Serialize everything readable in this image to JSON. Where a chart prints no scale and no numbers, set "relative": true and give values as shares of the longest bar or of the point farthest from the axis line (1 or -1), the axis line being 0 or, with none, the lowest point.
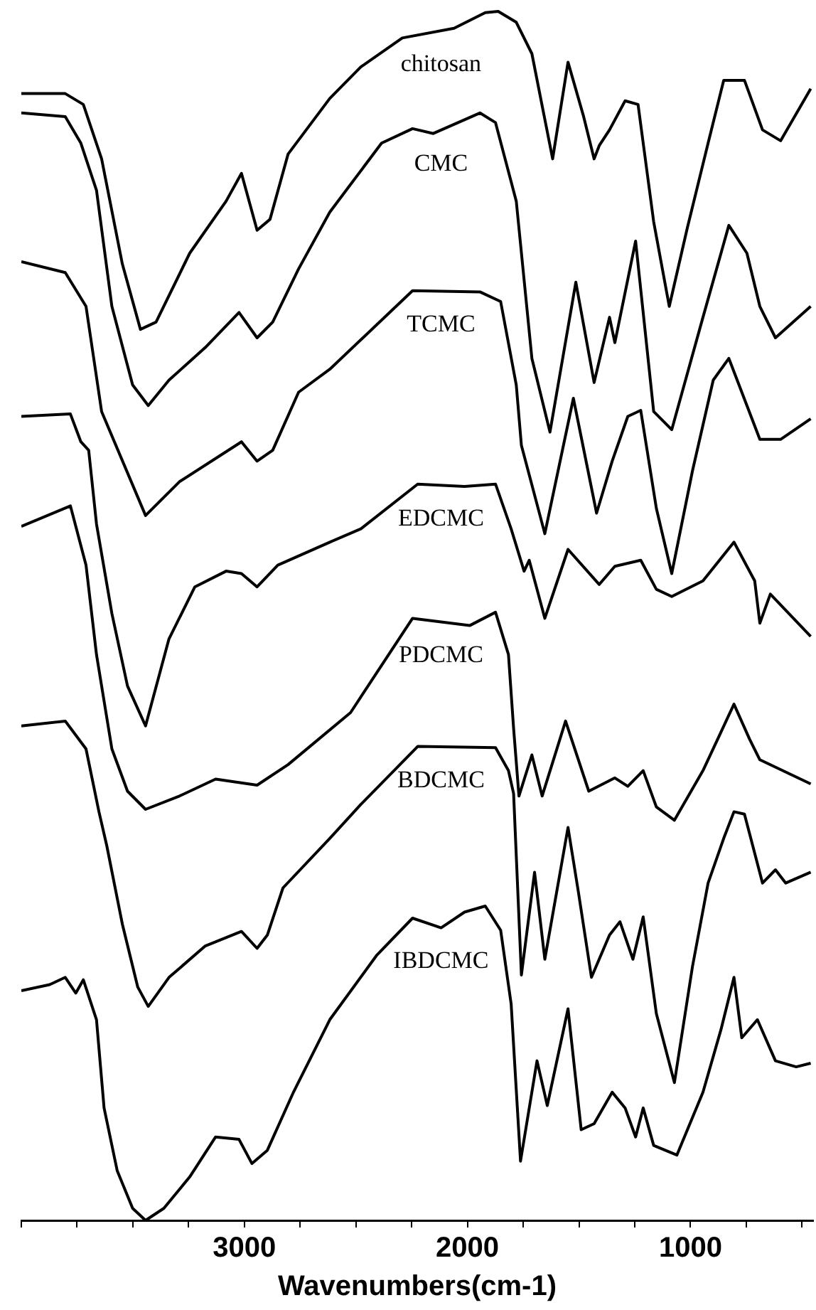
{
  "chart_data": {
    "type": "line",
    "relative": true,
    "xlabel": "Wavenumbers(cm-1)",
    "xlim": [
      4000,
      450
    ],
    "xticks": [
      {
        "value": 4000,
        "label": null
      },
      {
        "value": 3750,
        "label": null
      },
      {
        "value": 3500,
        "label": null
      },
      {
        "value": 3250,
        "label": null
      },
      3000,
      {
        "value": 2750,
        "label": null
      },
      {
        "value": 2500,
        "label": null
      },
      {
        "value": 2250,
        "label": null
      },
      2000,
      {
        "value": 1750,
        "label": null
      },
      {
        "value": 1500,
        "label": null
      },
      {
        "value": 1250,
        "label": null
      },
      1000,
      {
        "value": 750,
        "label": null
      },
      {
        "value": 500,
        "label": null
      }
    ],
    "tick_labels": "x",
    "grid": false,
    "legend": false,
    "series": [
      {
        "name": "chitosan",
        "color": "#000000",
        "x": [
          4000,
          3803,
          3722,
          3640,
          3547,
          3466,
          3396,
          3245,
          3082,
          3013,
          2943,
          2885,
          2804,
          2617,
          2478,
          2292,
          2060,
          1920,
          1862,
          1781,
          1711,
          1618,
          1549,
          1479,
          1432,
          1409,
          1363,
          1293,
          1235,
          1165,
          1095,
          1014,
          921,
          851,
          758,
          677,
          596,
          461
        ],
        "values": [
          0.932,
          0.932,
          0.923,
          0.878,
          0.791,
          0.737,
          0.743,
          0.8,
          0.843,
          0.866,
          0.819,
          0.828,
          0.882,
          0.928,
          0.954,
          0.978,
          0.986,
          0.999,
          1,
          0.991,
          0.965,
          0.878,
          0.958,
          0.913,
          0.878,
          0.889,
          0.902,
          0.926,
          0.923,
          0.826,
          0.756,
          0.821,
          0.891,
          0.943,
          0.943,
          0.902,
          0.893,
          0.936
        ]
      },
      {
        "name": "CMC",
        "color": "#000000",
        "x": [
          4000,
          3803,
          3733,
          3663,
          3594,
          3501,
          3431,
          3338,
          3175,
          3024,
          2943,
          2873,
          2757,
          2617,
          2385,
          2246,
          2153,
          1944,
          1874,
          1781,
          1711,
          1630,
          1514,
          1432,
          1363,
          1339,
          1246,
          1165,
          1084,
          944,
          828,
          747,
          689,
          619,
          461
        ],
        "values": [
          0.916,
          0.913,
          0.891,
          0.852,
          0.756,
          0.691,
          0.674,
          0.695,
          0.722,
          0.751,
          0.73,
          0.743,
          0.787,
          0.834,
          0.891,
          0.903,
          0.899,
          0.916,
          0.908,
          0.843,
          0.713,
          0.652,
          0.776,
          0.693,
          0.747,
          0.726,
          0.81,
          0.669,
          0.654,
          0.747,
          0.823,
          0.8,
          0.756,
          0.73,
          0.756
        ]
      },
      {
        "name": "TCMC",
        "color": "#000000",
        "x": [
          4000,
          3803,
          3710,
          3640,
          3443,
          3291,
          3013,
          2943,
          2873,
          2757,
          2617,
          2246,
          1944,
          1851,
          1781,
          1758,
          1653,
          1525,
          1421,
          1351,
          1281,
          1223,
          1153,
          1084,
          991,
          898,
          828,
          747,
          689,
          596,
          461
        ],
        "values": [
          0.793,
          0.784,
          0.756,
          0.669,
          0.583,
          0.611,
          0.644,
          0.628,
          0.637,
          0.685,
          0.704,
          0.769,
          0.768,
          0.76,
          0.691,
          0.641,
          0.568,
          0.68,
          0.585,
          0.628,
          0.665,
          0.67,
          0.589,
          0.535,
          0.62,
          0.695,
          0.713,
          0.674,
          0.646,
          0.646,
          0.663
        ]
      },
      {
        "name": "EDCMC",
        "color": "#000000",
        "x": [
          4000,
          3780,
          3733,
          3698,
          3663,
          3594,
          3524,
          3443,
          3338,
          3222,
          3082,
          3013,
          2943,
          2850,
          2617,
          2478,
          2223,
          2013,
          1874,
          1804,
          1746,
          1723,
          1653,
          1549,
          1409,
          1339,
          1223,
          1153,
          1084,
          944,
          805,
          712,
          689,
          642,
          461
        ],
        "values": [
          0.665,
          0.667,
          0.644,
          0.637,
          0.576,
          0.502,
          0.442,
          0.409,
          0.481,
          0.524,
          0.537,
          0.535,
          0.524,
          0.542,
          0.561,
          0.572,
          0.609,
          0.607,
          0.609,
          0.572,
          0.537,
          0.546,
          0.498,
          0.555,
          0.526,
          0.541,
          0.546,
          0.522,
          0.516,
          0.529,
          0.561,
          0.529,
          0.494,
          0.518,
          0.483
        ]
      },
      {
        "name": "PDCMC",
        "color": "#000000",
        "x": [
          4000,
          3780,
          3710,
          3663,
          3594,
          3524,
          3443,
          3291,
          3129,
          2943,
          2804,
          2524,
          2246,
          1990,
          1874,
          1816,
          1793,
          1769,
          1711,
          1665,
          1560,
          1456,
          1339,
          1281,
          1212,
          1153,
          1072,
          944,
          805,
          735,
          689,
          461
        ],
        "values": [
          0.574,
          0.591,
          0.542,
          0.468,
          0.39,
          0.355,
          0.34,
          0.351,
          0.365,
          0.36,
          0.377,
          0.42,
          0.498,
          0.492,
          0.503,
          0.468,
          0.407,
          0.351,
          0.385,
          0.351,
          0.413,
          0.355,
          0.366,
          0.359,
          0.372,
          0.342,
          0.331,
          0.372,
          0.427,
          0.398,
          0.381,
          0.361
        ]
      },
      {
        "name": "BDCMC",
        "color": "#000000",
        "x": [
          4000,
          3803,
          3710,
          3652,
          3617,
          3547,
          3478,
          3431,
          3338,
          3175,
          3013,
          2943,
          2897,
          2827,
          2617,
          2478,
          2223,
          1874,
          1816,
          1793,
          1758,
          1699,
          1653,
          1549,
          1502,
          1444,
          1363,
          1316,
          1258,
          1212,
          1153,
          1072,
          991,
          921,
          851,
          805,
          758,
          677,
          619,
          573,
          461
        ],
        "values": [
          0.409,
          0.413,
          0.39,
          0.338,
          0.31,
          0.245,
          0.193,
          0.177,
          0.201,
          0.227,
          0.239,
          0.225,
          0.236,
          0.275,
          0.316,
          0.344,
          0.392,
          0.391,
          0.372,
          0.353,
          0.203,
          0.288,
          0.216,
          0.325,
          0.271,
          0.201,
          0.236,
          0.247,
          0.216,
          0.251,
          0.171,
          0.114,
          0.21,
          0.279,
          0.316,
          0.338,
          0.336,
          0.279,
          0.29,
          0.279,
          0.288
        ]
      },
      {
        "name": "IBDCMC",
        "color": "#000000",
        "x": [
          4000,
          3873,
          3803,
          3756,
          3722,
          3663,
          3629,
          3570,
          3501,
          3443,
          3361,
          3245,
          3129,
          3024,
          2966,
          2897,
          2780,
          2617,
          2408,
          2246,
          2118,
          2013,
          1920,
          1851,
          1804,
          1762,
          1688,
          1642,
          1549,
          1490,
          1432,
          1351,
          1293,
          1246,
          1212,
          1165,
          1061,
          944,
          863,
          805,
          770,
          700,
          619,
          526,
          461
        ],
        "values": [
          0.19,
          0.195,
          0.201,
          0.188,
          0.199,
          0.166,
          0.093,
          0.041,
          0.01,
          0,
          0.01,
          0.036,
          0.069,
          0.067,
          0.047,
          0.058,
          0.106,
          0.166,
          0.219,
          0.25,
          0.242,
          0.255,
          0.26,
          0.24,
          0.179,
          0.049,
          0.132,
          0.095,
          0.175,
          0.075,
          0.08,
          0.106,
          0.093,
          0.069,
          0.093,
          0.062,
          0.054,
          0.106,
          0.158,
          0.201,
          0.151,
          0.166,
          0.132,
          0.127,
          0.13
        ]
      }
    ]
  }
}
